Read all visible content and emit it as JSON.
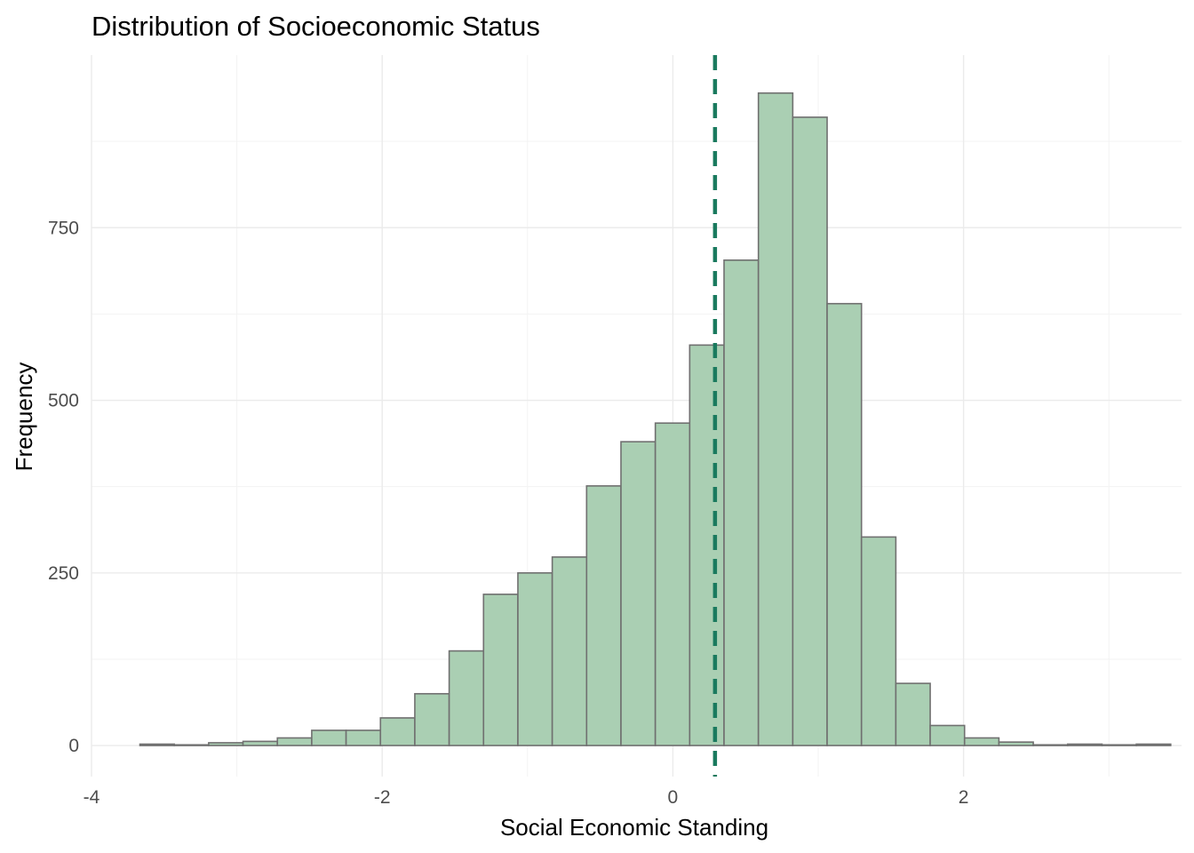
{
  "chart_data": {
    "type": "bar",
    "title": "Distribution of Socioeconomic Status",
    "xlabel": "Social Economic Standing",
    "ylabel": "Frequency",
    "xlim": [
      -4.0,
      3.5
    ],
    "ylim": [
      -45,
      1000
    ],
    "x_ticks": [
      -4,
      -2,
      0,
      2
    ],
    "x_tick_labels": [
      "-4",
      "-2",
      "0",
      "2"
    ],
    "y_ticks": [
      0,
      250,
      500,
      750
    ],
    "y_tick_labels": [
      "0",
      "250",
      "500",
      "750"
    ],
    "grid": true,
    "legend": "none",
    "bin_width": 0.2364,
    "bins": [
      {
        "x_start": -3.6667,
        "count": 2
      },
      {
        "x_start": -3.4303,
        "count": 1
      },
      {
        "x_start": -3.1939,
        "count": 4
      },
      {
        "x_start": -2.9575,
        "count": 6
      },
      {
        "x_start": -2.7211,
        "count": 11
      },
      {
        "x_start": -2.4847,
        "count": 22
      },
      {
        "x_start": -2.2483,
        "count": 22
      },
      {
        "x_start": -2.0119,
        "count": 40
      },
      {
        "x_start": -1.7755,
        "count": 75
      },
      {
        "x_start": -1.5391,
        "count": 137
      },
      {
        "x_start": -1.3027,
        "count": 219
      },
      {
        "x_start": -1.0663,
        "count": 250
      },
      {
        "x_start": -0.8299,
        "count": 273
      },
      {
        "x_start": -0.5935,
        "count": 376
      },
      {
        "x_start": -0.3571,
        "count": 440
      },
      {
        "x_start": -0.1207,
        "count": 467
      },
      {
        "x_start": 0.1157,
        "count": 580
      },
      {
        "x_start": 0.3521,
        "count": 703
      },
      {
        "x_start": 0.5885,
        "count": 945
      },
      {
        "x_start": 0.8249,
        "count": 910
      },
      {
        "x_start": 1.0613,
        "count": 640
      },
      {
        "x_start": 1.2977,
        "count": 302
      },
      {
        "x_start": 1.5341,
        "count": 90
      },
      {
        "x_start": 1.7705,
        "count": 29
      },
      {
        "x_start": 2.0069,
        "count": 11
      },
      {
        "x_start": 2.2433,
        "count": 5
      },
      {
        "x_start": 2.4797,
        "count": 1
      },
      {
        "x_start": 2.7161,
        "count": 2
      },
      {
        "x_start": 2.9525,
        "count": 1
      },
      {
        "x_start": 3.1889,
        "count": 2
      }
    ],
    "mean_line": {
      "x": 0.29,
      "style": "dashed",
      "color": "#1a7a5e"
    },
    "colors": {
      "bar_fill": "#aacfb3",
      "bar_stroke": "#707070",
      "grid_major": "#ebebeb",
      "grid_minor": "#f3f3f3"
    }
  }
}
